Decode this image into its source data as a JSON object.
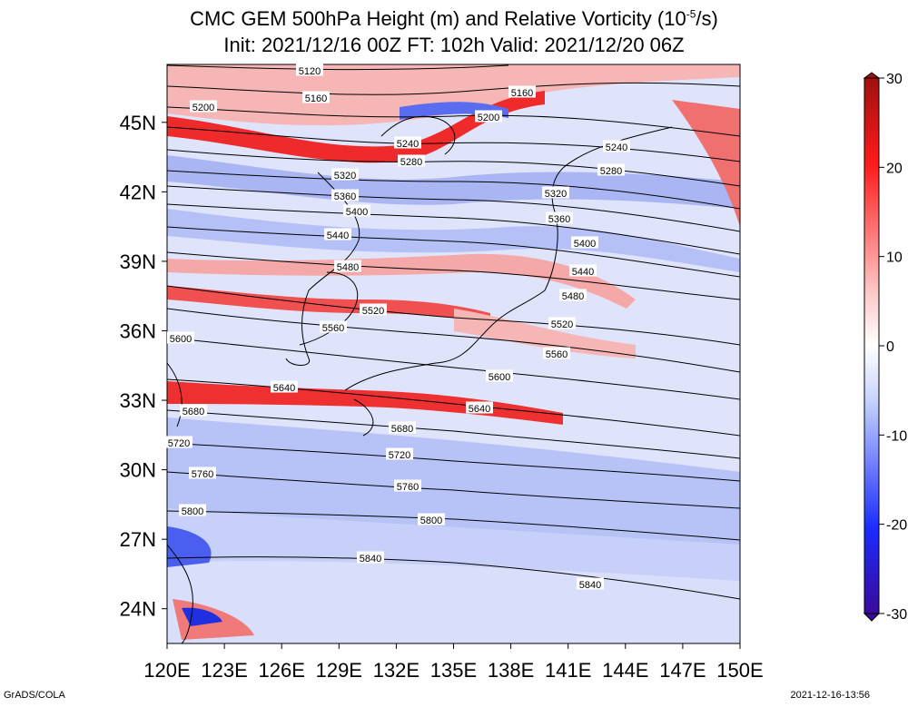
{
  "title": {
    "line1": "CMC GEM 500hPa Height (m) and Relative Vorticity (10",
    "line1_sup": "-5",
    "line1_end": "/s)",
    "line2": "Init: 2021/12/16 00Z  FT: 102h  Valid: 2021/12/20 06Z"
  },
  "axes": {
    "lon_labels": [
      "120E",
      "123E",
      "126E",
      "129E",
      "132E",
      "135E",
      "138E",
      "141E",
      "144E",
      "147E",
      "150E"
    ],
    "lat_labels": [
      "45N",
      "42N",
      "39N",
      "36N",
      "33N",
      "30N",
      "27N",
      "24N"
    ],
    "lon_range": [
      120,
      150
    ],
    "lat_range": [
      22.5,
      47.5
    ]
  },
  "colorbar": {
    "labels": [
      "30",
      "20",
      "10",
      "0",
      "-10",
      "-20",
      "-30"
    ],
    "values": [
      30,
      20,
      10,
      0,
      -10,
      -20,
      -30
    ],
    "range": [
      -30,
      30
    ],
    "colors": {
      "neg_deep": "#3a0a9a",
      "neg": "#1a2cff",
      "neg_light": "#c8d4ff",
      "zero": "#ffffff",
      "pos_light": "#ffc8c8",
      "pos": "#ff1a1a",
      "pos_deep": "#a01010"
    }
  },
  "contours": [
    {
      "label": "5120",
      "value": 5120
    },
    {
      "label": "5160",
      "value": 5160
    },
    {
      "label": "5200",
      "value": 5200
    },
    {
      "label": "5240",
      "value": 5240
    },
    {
      "label": "5280",
      "value": 5280
    },
    {
      "label": "5320",
      "value": 5320
    },
    {
      "label": "5360",
      "value": 5360
    },
    {
      "label": "5400",
      "value": 5400
    },
    {
      "label": "5440",
      "value": 5440
    },
    {
      "label": "5480",
      "value": 5480
    },
    {
      "label": "5520",
      "value": 5520
    },
    {
      "label": "5560",
      "value": 5560
    },
    {
      "label": "5600",
      "value": 5600
    },
    {
      "label": "5640",
      "value": 5640
    },
    {
      "label": "5680",
      "value": 5680
    },
    {
      "label": "5720",
      "value": 5720
    },
    {
      "label": "5760",
      "value": 5760
    },
    {
      "label": "5800",
      "value": 5800
    },
    {
      "label": "5840",
      "value": 5840
    }
  ],
  "footer": {
    "left": "GrADS/COLA",
    "right": "2021-12-16-13:56"
  }
}
